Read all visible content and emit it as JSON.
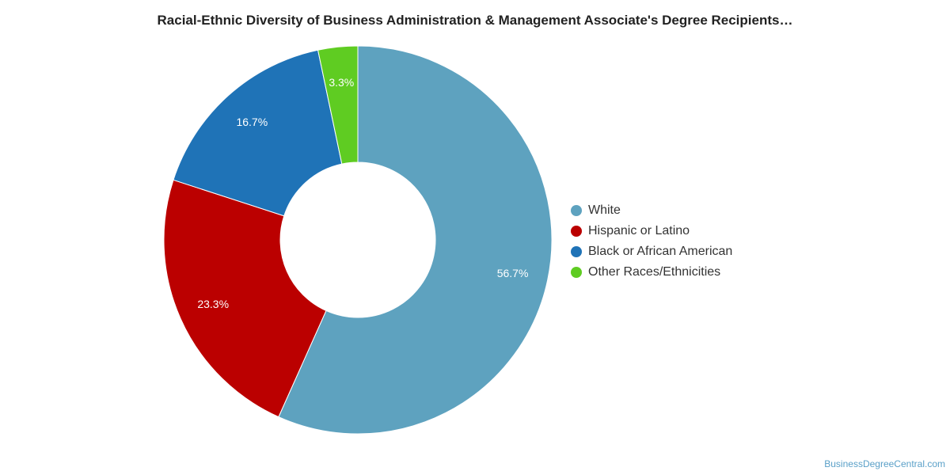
{
  "chart_data": {
    "type": "pie",
    "title": "Racial-Ethnic Diversity of Business Administration & Management Associate's Degree Recipients…",
    "donut": true,
    "legend_position": "right",
    "categories": [
      "White",
      "Hispanic or Latino",
      "Black or African American",
      "Other Races/Ethnicities"
    ],
    "values": [
      56.7,
      23.3,
      16.7,
      3.3
    ],
    "value_labels": [
      "56.7%",
      "23.3%",
      "16.7%",
      "3.3%"
    ],
    "colors": [
      "#5ea2bf",
      "#bb0000",
      "#1f73b7",
      "#5fcc22"
    ]
  },
  "source": "BusinessDegreeCentral.com"
}
